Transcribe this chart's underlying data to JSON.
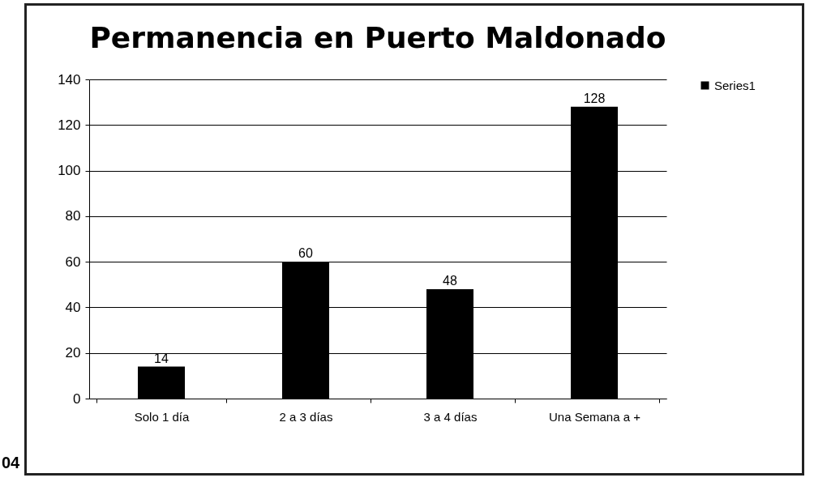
{
  "chart_data": {
    "type": "bar",
    "title": "Permanencia en Puerto Maldonado",
    "categories": [
      "Solo 1 día",
      "2 a  3 días",
      "3 a 4 días",
      "Una Semana a +"
    ],
    "series": [
      {
        "name": "Series1",
        "color": "#000000",
        "values": [
          14,
          60,
          48,
          128
        ]
      }
    ],
    "ylim": [
      0,
      140
    ],
    "yticks": [
      0,
      20,
      40,
      60,
      80,
      100,
      120,
      140
    ],
    "grid": "y",
    "legend": "right",
    "data_labels": true,
    "annotations": [
      "04"
    ]
  }
}
